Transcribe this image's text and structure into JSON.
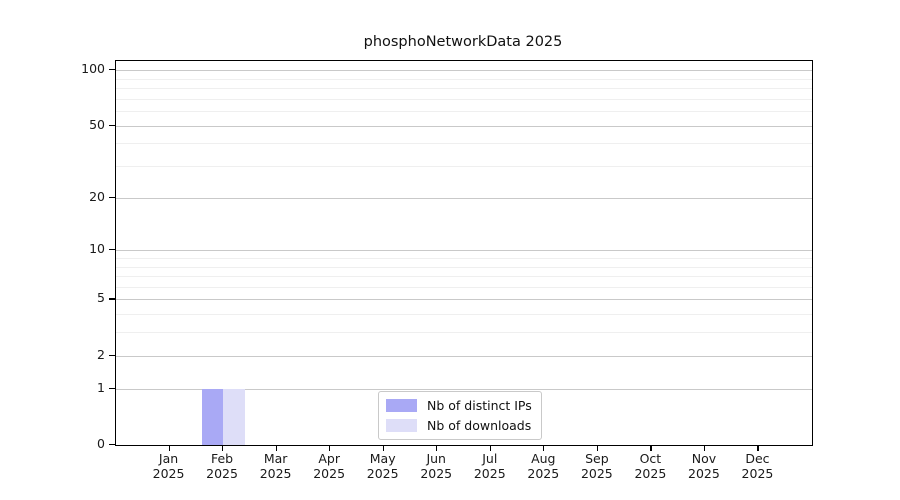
{
  "figure": {
    "title": "phosphoNetworkData 2025"
  },
  "chart_data": {
    "type": "bar",
    "title": "phosphoNetworkData 2025",
    "categories": [
      "Jan 2025",
      "Feb 2025",
      "Mar 2025",
      "Apr 2025",
      "May 2025",
      "Jun 2025",
      "Jul 2025",
      "Aug 2025",
      "Sep 2025",
      "Oct 2025",
      "Nov 2025",
      "Dec 2025"
    ],
    "x_tick_labels": [
      [
        "Jan",
        "2025"
      ],
      [
        "Feb",
        "2025"
      ],
      [
        "Mar",
        "2025"
      ],
      [
        "Apr",
        "2025"
      ],
      [
        "May",
        "2025"
      ],
      [
        "Jun",
        "2025"
      ],
      [
        "Jul",
        "2025"
      ],
      [
        "Aug",
        "2025"
      ],
      [
        "Sep",
        "2025"
      ],
      [
        "Oct",
        "2025"
      ],
      [
        "Nov",
        "2025"
      ],
      [
        "Dec",
        "2025"
      ]
    ],
    "series": [
      {
        "name": "Nb of distinct IPs",
        "color": "#a9a9f5",
        "values": [
          0,
          1,
          0,
          0,
          0,
          0,
          0,
          0,
          0,
          0,
          0,
          0
        ]
      },
      {
        "name": "Nb of downloads",
        "color": "#dedef8",
        "values": [
          0,
          1,
          0,
          0,
          0,
          0,
          0,
          0,
          0,
          0,
          0,
          0
        ]
      }
    ],
    "y_scale": "log1p",
    "y_axis": {
      "major_ticks": [
        0,
        1,
        2,
        5,
        10,
        20,
        50,
        100
      ],
      "minor_gridlines": [
        3,
        4,
        6,
        7,
        8,
        9,
        30,
        40,
        60,
        70,
        80,
        90
      ],
      "min": 0,
      "max": 112
    },
    "grid": "horizontal",
    "legend": {
      "position": "lower center",
      "items": [
        "Nb of distinct IPs",
        "Nb of downloads"
      ]
    }
  }
}
